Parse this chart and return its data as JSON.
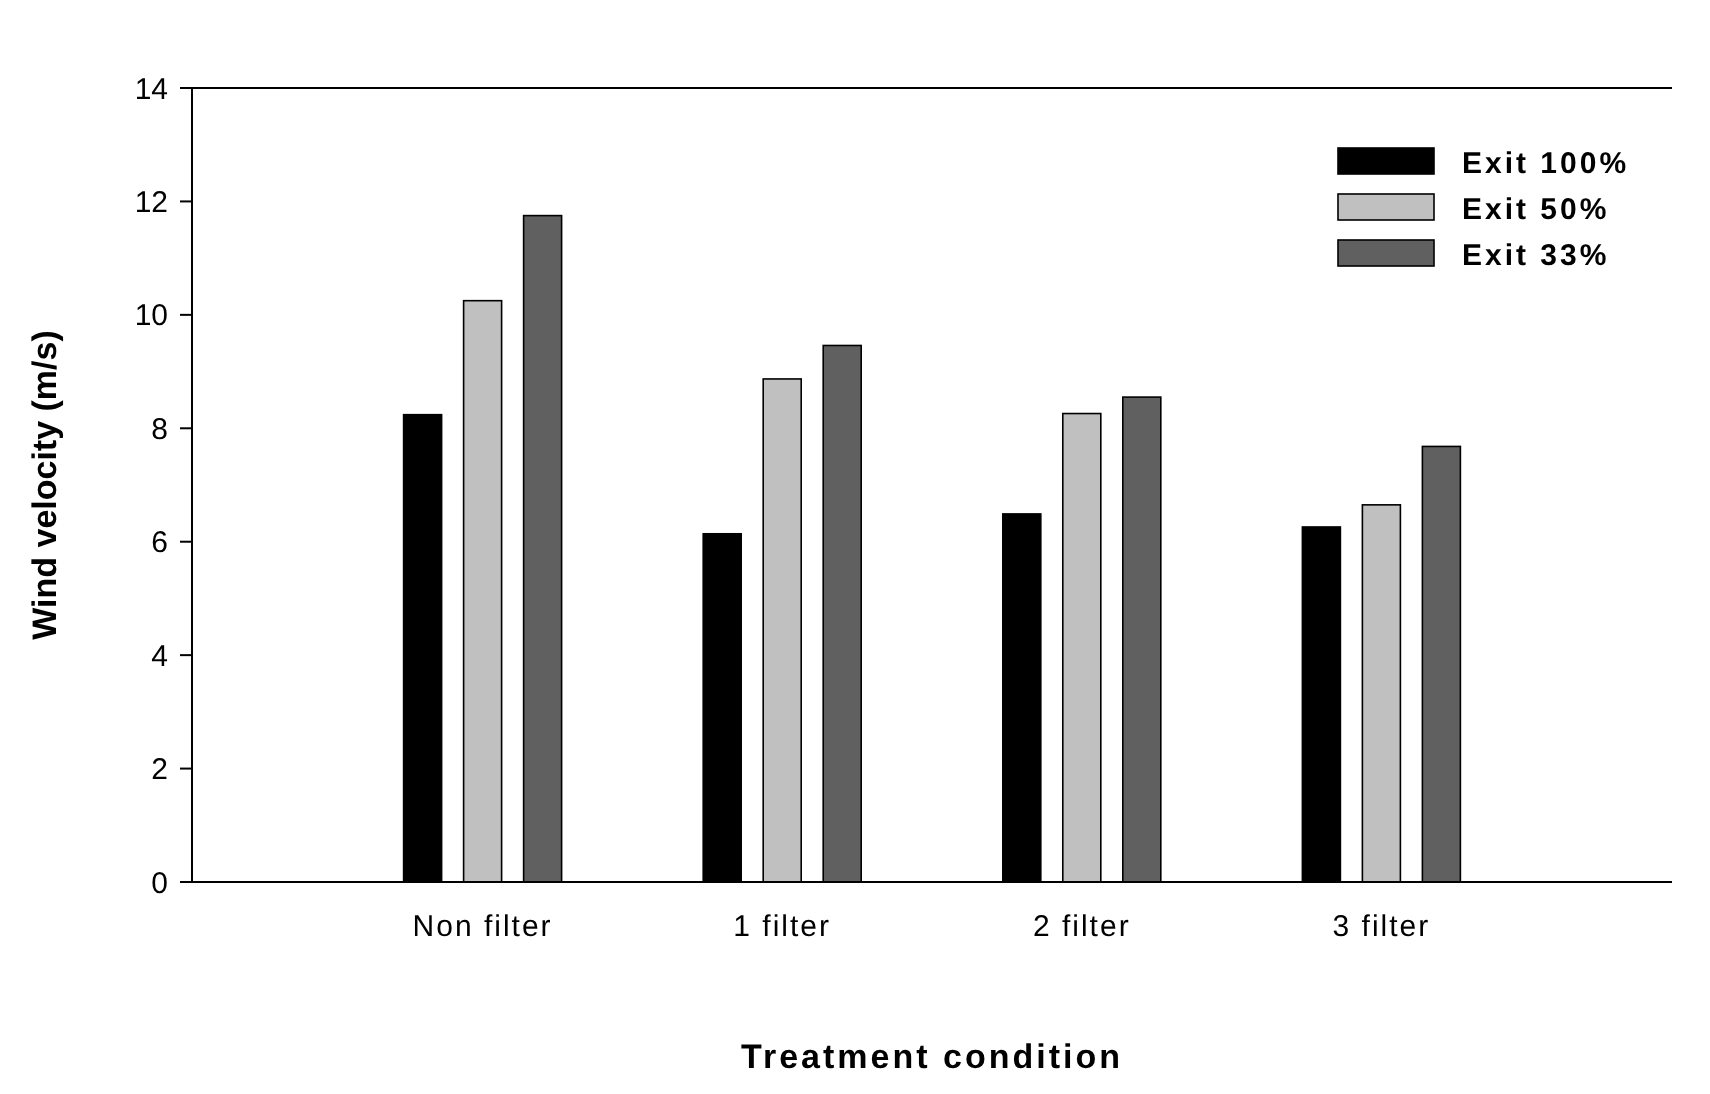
{
  "chart_data": {
    "type": "bar",
    "xlabel": "Treatment condition",
    "ylabel": "Wind velocity (m/s)",
    "categories": [
      "Non filter",
      "1 filter",
      "2 filter",
      "3 filter"
    ],
    "series": [
      {
        "name": "Exit 100%",
        "color": "#000000",
        "values": [
          8.24,
          6.14,
          6.49,
          6.26
        ]
      },
      {
        "name": "Exit 50%",
        "color": "#c0c0c0",
        "values": [
          10.25,
          8.87,
          8.26,
          6.65
        ]
      },
      {
        "name": "Exit 33%",
        "color": "#606060",
        "values": [
          11.75,
          9.46,
          8.55,
          7.68
        ]
      }
    ],
    "ylim": [
      0,
      14
    ],
    "yticks": [
      0,
      2,
      4,
      6,
      8,
      10,
      12,
      14
    ],
    "grid": false,
    "legend": "top right"
  }
}
